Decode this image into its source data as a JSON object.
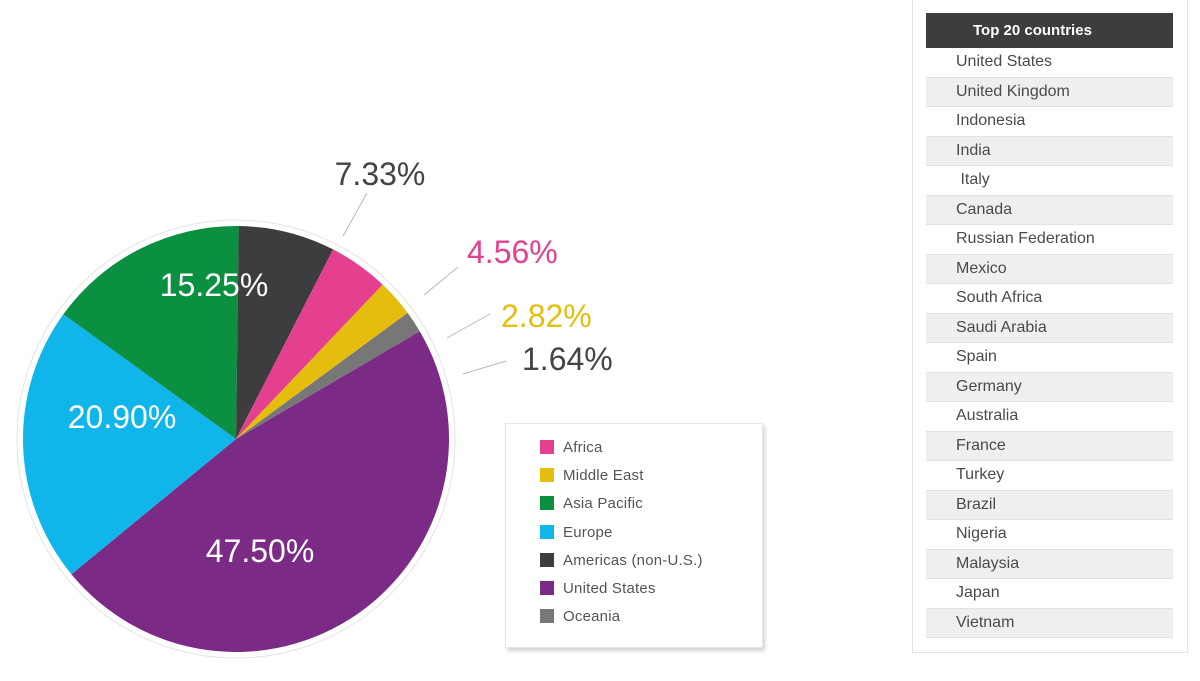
{
  "chart_data": {
    "type": "pie",
    "slices": [
      {
        "label": "Africa",
        "value": 4.56,
        "display": "4.56%",
        "color": "#e4408f"
      },
      {
        "label": "Middle East",
        "value": 2.82,
        "display": "2.82%",
        "color": "#e5bd0d"
      },
      {
        "label": "Asia Pacific",
        "value": 15.25,
        "display": "15.25%",
        "color": "#0b8f41"
      },
      {
        "label": "Europe",
        "value": 20.9,
        "display": "20.90%",
        "color": "#10b5ea"
      },
      {
        "label": "Americas (non-U.S.)",
        "value": 7.33,
        "display": "7.33%",
        "color": "#3d3c3e"
      },
      {
        "label": "United States",
        "value": 47.5,
        "display": "47.50%",
        "color": "#7b2a86"
      },
      {
        "label": "Oceania",
        "value": 1.64,
        "display": "1.64%",
        "color": "#777777"
      }
    ],
    "legend_position": "bottom-right"
  },
  "legend": {
    "items": [
      {
        "label": "Africa",
        "color": "#e4408f"
      },
      {
        "label": "Middle East",
        "color": "#e5bd0d"
      },
      {
        "label": "Asia Pacific",
        "color": "#0b8f41"
      },
      {
        "label": "Europe",
        "color": "#10b5ea"
      },
      {
        "label": "Americas (non-U.S.)",
        "color": "#3d3c3e"
      },
      {
        "label": "United States",
        "color": "#7b2a86"
      },
      {
        "label": "Oceania",
        "color": "#777777"
      }
    ]
  },
  "countries": {
    "header": "Top 20 countries",
    "items": [
      "United States",
      "United Kingdom",
      "Indonesia",
      "India",
      " Italy",
      "Canada",
      "Russian Federation",
      "Mexico",
      "South Africa",
      "Saudi Arabia",
      "Spain",
      "Germany",
      "Australia",
      "France",
      "Turkey",
      "Brazil",
      "Nigeria",
      "Malaysia",
      "Japan",
      "Vietnam"
    ]
  }
}
